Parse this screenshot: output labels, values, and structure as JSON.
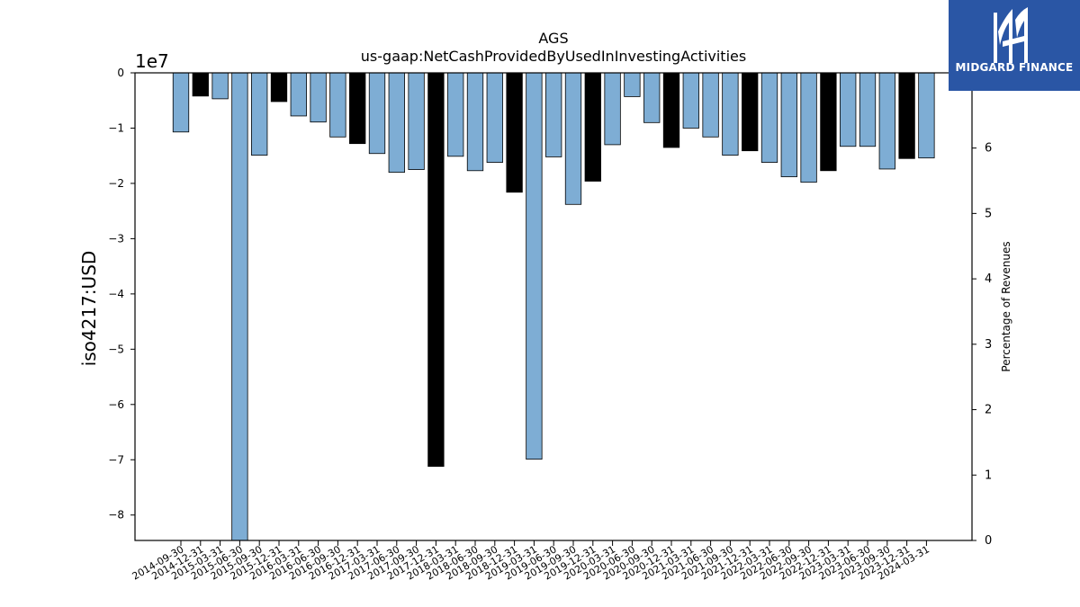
{
  "chart_data": {
    "type": "bar",
    "title": "AGS",
    "subtitle": "us-gaap:NetCashProvidedByUsedInInvestingActivities",
    "ylabel": "iso4217:USD",
    "y2label": "Percentage of Revenues",
    "y_offset_label": "1e7",
    "ylim": [
      -84600000,
      0
    ],
    "yticks": [
      0,
      -1,
      -2,
      -3,
      -4,
      -5,
      -6,
      -7,
      -8
    ],
    "y2lim": [
      0,
      7.15
    ],
    "y2ticks": [
      0,
      1,
      2,
      3,
      4,
      5,
      6
    ],
    "colors": {
      "light": "#7eadd4",
      "dark": "#000000"
    },
    "categories": [
      "2014-09-30",
      "2014-12-31",
      "2015-03-31",
      "2015-06-30",
      "2015-09-30",
      "2015-12-31",
      "2016-03-31",
      "2016-06-30",
      "2016-09-30",
      "2016-12-31",
      "2017-03-31",
      "2017-06-30",
      "2017-09-30",
      "2017-12-31",
      "2018-03-31",
      "2018-06-30",
      "2018-09-30",
      "2018-12-31",
      "2019-03-31",
      "2019-06-30",
      "2019-09-30",
      "2019-12-31",
      "2020-03-31",
      "2020-06-30",
      "2020-09-30",
      "2020-12-31",
      "2021-03-31",
      "2021-06-30",
      "2021-09-30",
      "2021-12-31",
      "2022-03-31",
      "2022-06-30",
      "2022-09-30",
      "2022-12-31",
      "2023-03-31",
      "2023-06-30",
      "2023-09-30",
      "2023-12-31",
      "2024-03-31"
    ],
    "values": [
      -10700000,
      -4200000,
      -4700000,
      -84600000,
      -14900000,
      -5200000,
      -7800000,
      -8900000,
      -11600000,
      -12800000,
      -14600000,
      -18000000,
      -17500000,
      -71200000,
      -15100000,
      -17700000,
      -16200000,
      -21600000,
      -69900000,
      -15200000,
      -23800000,
      -19600000,
      -13000000,
      -4300000,
      -9000000,
      -13500000,
      -10000000,
      -11600000,
      -14900000,
      -14100000,
      -16200000,
      -18800000,
      -19800000,
      -17700000,
      -13300000,
      -13300000,
      -17400000,
      -15500000,
      -15400000
    ],
    "highlight": [
      "light",
      "dark",
      "light",
      "light",
      "light",
      "dark",
      "light",
      "light",
      "light",
      "dark",
      "light",
      "light",
      "light",
      "dark",
      "light",
      "light",
      "light",
      "dark",
      "light",
      "light",
      "light",
      "dark",
      "light",
      "light",
      "light",
      "dark",
      "light",
      "light",
      "light",
      "dark",
      "light",
      "light",
      "light",
      "dark",
      "light",
      "light",
      "light",
      "dark",
      "light"
    ]
  },
  "logo": {
    "text": "MIDGARD FINANCE"
  }
}
